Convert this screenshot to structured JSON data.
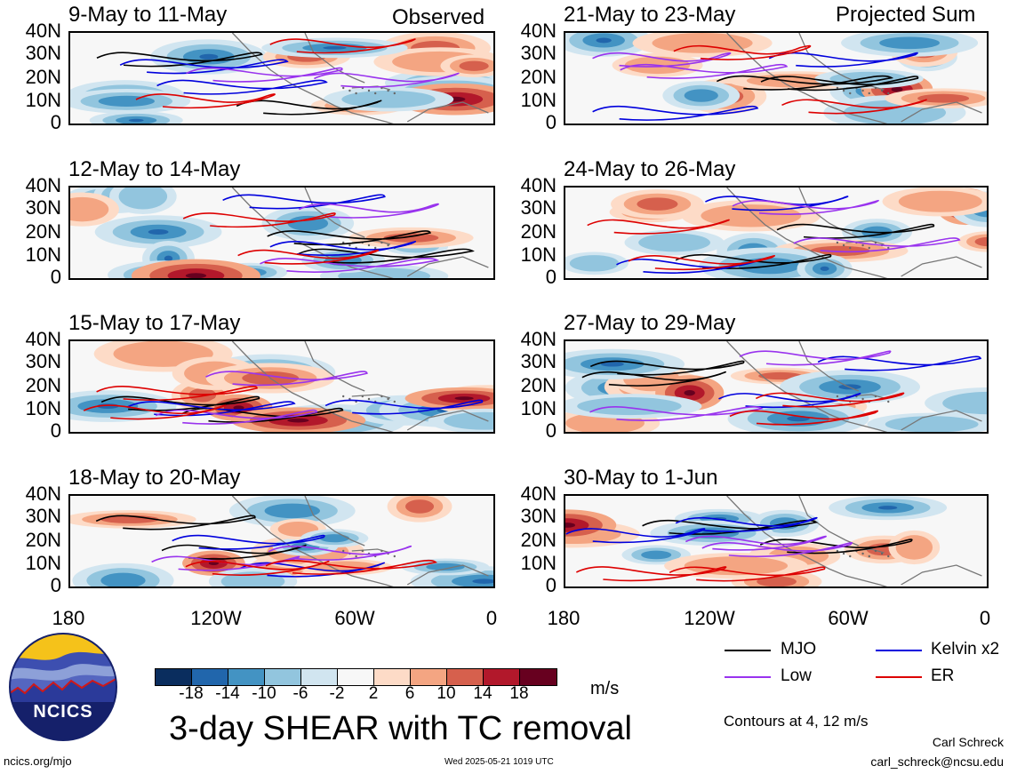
{
  "header": {
    "observed_label": "Observed",
    "projected_label": "Projected Sum"
  },
  "panels": [
    {
      "title": "9-May to 11-May"
    },
    {
      "title": "12-May to 14-May"
    },
    {
      "title": "15-May to 17-May"
    },
    {
      "title": "18-May to 20-May"
    },
    {
      "title": "21-May to 23-May"
    },
    {
      "title": "24-May to 26-May"
    },
    {
      "title": "27-May to 29-May"
    },
    {
      "title": "30-May to 1-Jun"
    }
  ],
  "y_ticks": [
    "40N",
    "30N",
    "20N",
    "10N",
    "0"
  ],
  "x_ticks": [
    "180",
    "120W",
    "60W",
    "0"
  ],
  "colorbar": {
    "labels": [
      "-18",
      "-14",
      "-10",
      "-6",
      "-2",
      "2",
      "6",
      "10",
      "14",
      "18"
    ],
    "colors": [
      "#0a2d5e",
      "#2166ac",
      "#4393c3",
      "#92c5de",
      "#d1e5f0",
      "#f7f7f7",
      "#fddbc7",
      "#f4a582",
      "#d6604d",
      "#b2182b",
      "#67001f"
    ],
    "units": "m/s"
  },
  "title": "3-day SHEAR with TC removal",
  "legend": [
    {
      "name": "MJO",
      "color": "#000000"
    },
    {
      "name": "Kelvin x2",
      "color": "#0000dd"
    },
    {
      "name": "Low",
      "color": "#9933ee"
    },
    {
      "name": "ER",
      "color": "#dd0000"
    }
  ],
  "contour_note": "Contours at 4, 12 m/s",
  "footer": {
    "site": "ncics.org/mjo",
    "timestamp": "Wed 2025-05-21 1019 UTC",
    "author": "Carl Schreck",
    "email": "carl_schreck@ncsu.edu"
  },
  "logo": {
    "text": "NCICS"
  }
}
